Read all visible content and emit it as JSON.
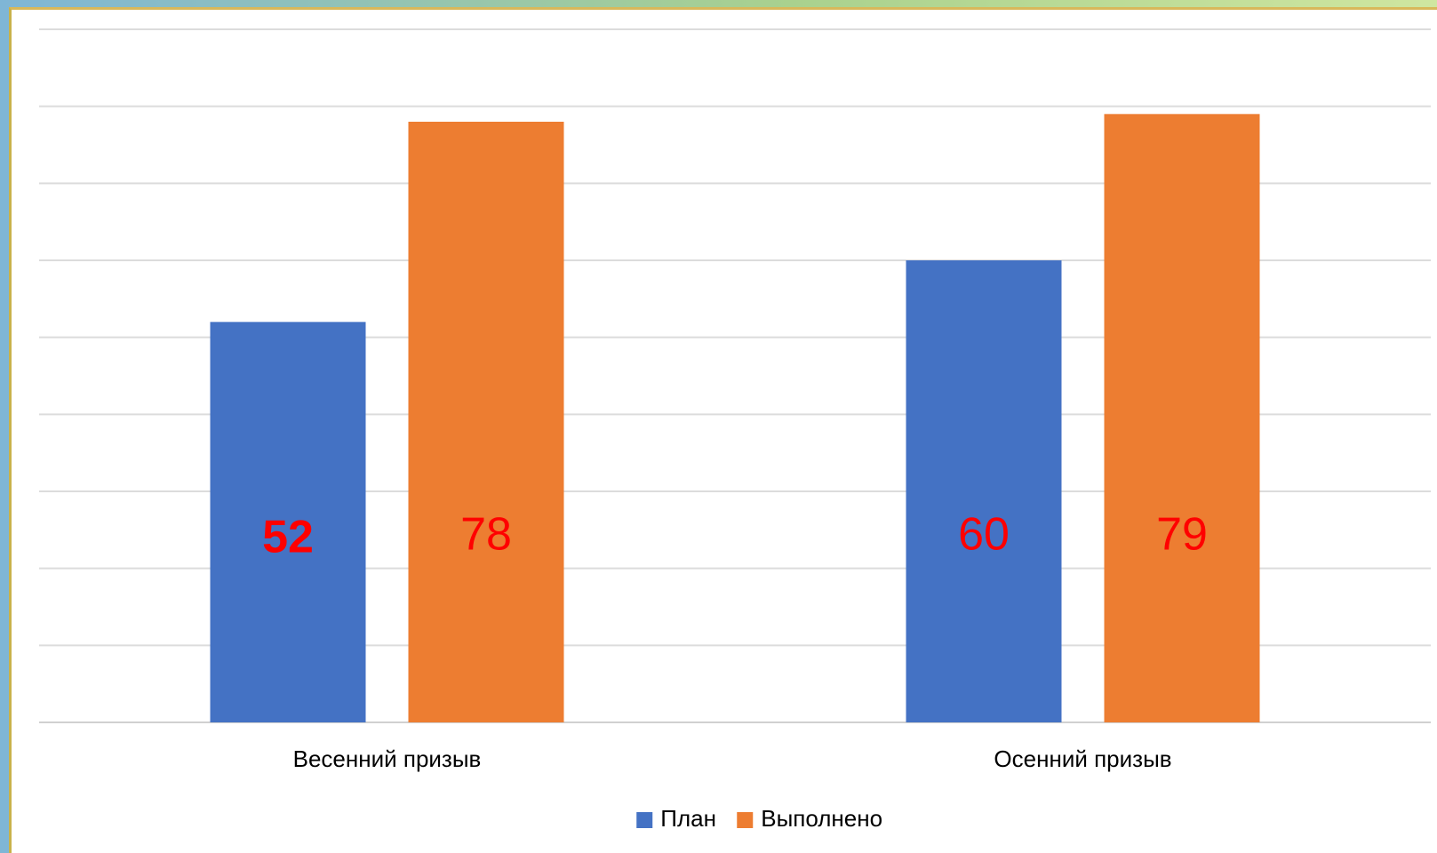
{
  "chart_data": {
    "type": "bar",
    "categories": [
      "Весенний призыв",
      "Осенний призыв"
    ],
    "series": [
      {
        "name": "План",
        "values": [
          52,
          60
        ],
        "color": "#4472C4"
      },
      {
        "name": "Выполнено",
        "values": [
          78,
          79
        ],
        "color": "#ED7D31"
      }
    ],
    "data_label_color": "#FF0000",
    "bold_labels": [
      [
        true,
        false
      ],
      [
        false,
        false
      ]
    ],
    "ylim": [
      0,
      90
    ],
    "grid": true,
    "legend": "bottom-center",
    "title": "",
    "xlabel": "",
    "ylabel": ""
  }
}
